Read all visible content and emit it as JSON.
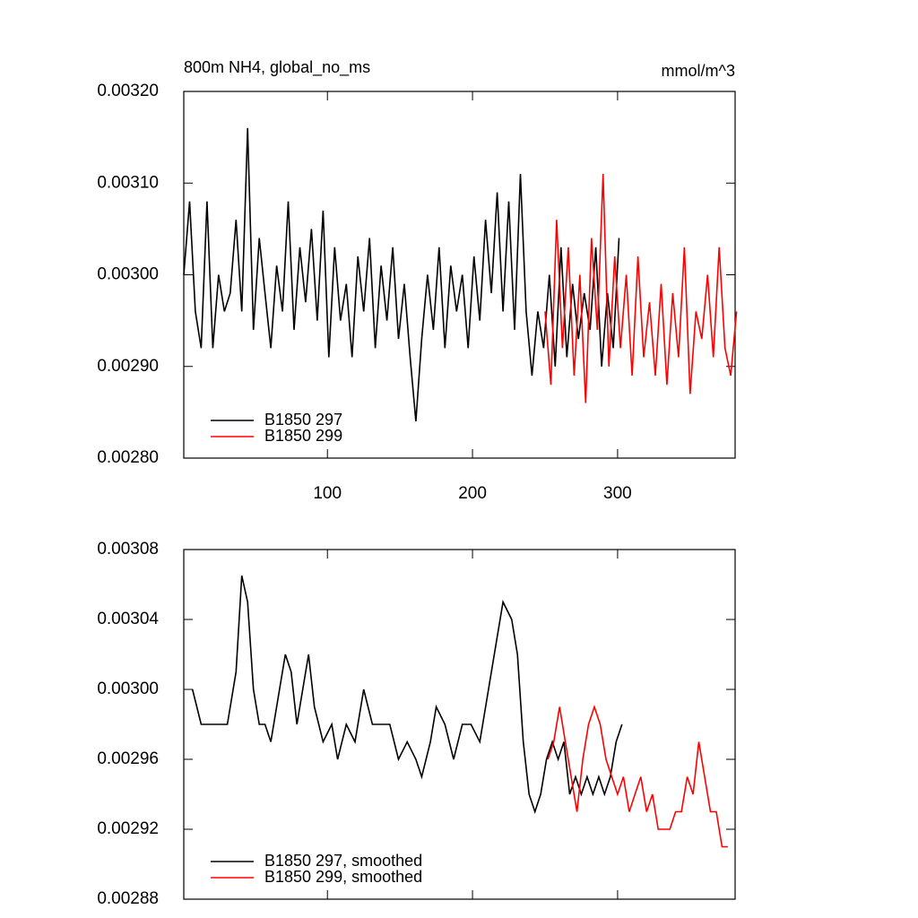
{
  "chart_data": [
    {
      "type": "line",
      "title": "800m NH4, global_no_ms",
      "units": "mmol/m^3",
      "xlim": [
        1,
        381
      ],
      "xticks": [
        100,
        200,
        300
      ],
      "xtick_labels": true,
      "ylim": [
        0.0028,
        0.0032
      ],
      "yticks": [
        {
          "value": 0.0028,
          "label": "0.00280"
        },
        {
          "value": 0.0029,
          "label": "0.00290"
        },
        {
          "value": 0.003,
          "label": "0.00300"
        },
        {
          "value": 0.0031,
          "label": "0.00310"
        },
        {
          "value": 0.0032,
          "label": "0.00320"
        }
      ],
      "legend": "lower left",
      "series": [
        {
          "name": "B1850 297",
          "color": "#000000",
          "x": [
            1,
            5,
            9,
            13,
            17,
            21,
            25,
            29,
            33,
            37,
            41,
            45,
            49,
            53,
            57,
            61,
            65,
            69,
            73,
            77,
            81,
            85,
            89,
            93,
            97,
            101,
            105,
            109,
            113,
            117,
            121,
            125,
            129,
            133,
            137,
            141,
            145,
            149,
            153,
            157,
            161,
            165,
            169,
            173,
            177,
            181,
            185,
            189,
            193,
            197,
            201,
            205,
            209,
            213,
            217,
            221,
            225,
            229,
            233,
            237,
            241,
            245,
            249,
            253,
            257,
            261,
            265,
            269,
            273,
            277,
            281,
            285,
            289,
            293,
            297,
            301
          ],
          "values": [
            0.003,
            0.00308,
            0.00296,
            0.00292,
            0.00308,
            0.00292,
            0.003,
            0.00296,
            0.00298,
            0.00306,
            0.00296,
            0.00316,
            0.00294,
            0.00304,
            0.00298,
            0.00292,
            0.00301,
            0.00296,
            0.00308,
            0.00294,
            0.00303,
            0.00297,
            0.00305,
            0.00295,
            0.00307,
            0.00291,
            0.00303,
            0.00295,
            0.00299,
            0.00291,
            0.00302,
            0.00296,
            0.00304,
            0.00292,
            0.00301,
            0.00295,
            0.00303,
            0.00293,
            0.00299,
            0.00291,
            0.00284,
            0.00293,
            0.003,
            0.00294,
            0.00303,
            0.00292,
            0.00301,
            0.00296,
            0.003,
            0.00292,
            0.00302,
            0.00295,
            0.00306,
            0.00298,
            0.00309,
            0.00296,
            0.00308,
            0.00294,
            0.00311,
            0.00296,
            0.00289,
            0.00296,
            0.00292,
            0.003,
            0.0029,
            0.00303,
            0.00291,
            0.00299,
            0.00293,
            0.00298,
            0.00294,
            0.00303,
            0.0029,
            0.00298,
            0.00292,
            0.00304
          ]
        },
        {
          "name": "B1850 299",
          "color": "#ff0000",
          "x": [
            250,
            254,
            258,
            262,
            266,
            270,
            274,
            278,
            282,
            286,
            290,
            294,
            298,
            302,
            306,
            310,
            314,
            318,
            322,
            326,
            330,
            334,
            338,
            342,
            346,
            350,
            354,
            358,
            362,
            366,
            370,
            374,
            378,
            382
          ],
          "values": [
            0.00296,
            0.00288,
            0.00306,
            0.00292,
            0.00303,
            0.00289,
            0.003,
            0.00286,
            0.00304,
            0.00294,
            0.00311,
            0.0029,
            0.00302,
            0.00292,
            0.003,
            0.00289,
            0.00302,
            0.00291,
            0.00297,
            0.00289,
            0.00299,
            0.00288,
            0.00298,
            0.00291,
            0.00303,
            0.00287,
            0.00296,
            0.00293,
            0.003,
            0.00291,
            0.00303,
            0.00292,
            0.00289,
            0.00296
          ]
        }
      ]
    },
    {
      "type": "line",
      "xlim": [
        1,
        381
      ],
      "xticks": [
        100,
        200,
        300
      ],
      "xtick_labels": false,
      "ylim": [
        0.00288,
        0.00308
      ],
      "yticks": [
        {
          "value": 0.00288,
          "label": "0.00288"
        },
        {
          "value": 0.00292,
          "label": "0.00292"
        },
        {
          "value": 0.00296,
          "label": "0.00296"
        },
        {
          "value": 0.003,
          "label": "0.00300"
        },
        {
          "value": 0.00304,
          "label": "0.00304"
        },
        {
          "value": 0.00308,
          "label": "0.00308"
        }
      ],
      "legend": "lower left",
      "series": [
        {
          "name": "B1850 297, smoothed",
          "color": "#000000",
          "x": [
            7,
            13,
            19,
            25,
            31,
            37,
            41,
            45,
            49,
            53,
            57,
            61,
            67,
            71,
            75,
            79,
            83,
            87,
            91,
            97,
            103,
            107,
            113,
            119,
            125,
            131,
            137,
            143,
            149,
            155,
            161,
            165,
            171,
            175,
            181,
            187,
            193,
            199,
            205,
            211,
            217,
            221,
            227,
            231,
            235,
            239,
            243,
            247,
            251,
            255,
            259,
            263,
            267,
            271,
            275,
            279,
            283,
            287,
            291,
            295,
            299,
            303
          ],
          "values": [
            0.003,
            0.00298,
            0.00298,
            0.00298,
            0.00298,
            0.00301,
            0.003065,
            0.00305,
            0.003,
            0.00298,
            0.00298,
            0.00297,
            0.003,
            0.00302,
            0.00301,
            0.00298,
            0.003,
            0.00302,
            0.00299,
            0.00297,
            0.00298,
            0.00296,
            0.00298,
            0.00297,
            0.003,
            0.00298,
            0.00298,
            0.00298,
            0.00296,
            0.00297,
            0.00296,
            0.00295,
            0.00297,
            0.00299,
            0.00298,
            0.00296,
            0.00298,
            0.00298,
            0.00297,
            0.003,
            0.00303,
            0.00305,
            0.00304,
            0.00302,
            0.00297,
            0.00294,
            0.00293,
            0.00294,
            0.00296,
            0.00297,
            0.00296,
            0.00297,
            0.00294,
            0.00295,
            0.00294,
            0.00295,
            0.00294,
            0.00295,
            0.00294,
            0.00295,
            0.00297,
            0.00298
          ]
        },
        {
          "name": "B1850 299, smoothed",
          "color": "#ff0000",
          "x": [
            252,
            256,
            260,
            264,
            268,
            272,
            276,
            280,
            284,
            288,
            292,
            296,
            300,
            304,
            308,
            312,
            316,
            320,
            324,
            328,
            332,
            336,
            340,
            344,
            348,
            352,
            356,
            360,
            364,
            368,
            372,
            376
          ],
          "values": [
            0.00296,
            0.00297,
            0.00299,
            0.00297,
            0.00295,
            0.00293,
            0.00296,
            0.00298,
            0.00299,
            0.00298,
            0.00296,
            0.00295,
            0.00294,
            0.00295,
            0.00293,
            0.00294,
            0.00295,
            0.00293,
            0.00294,
            0.00292,
            0.00292,
            0.00292,
            0.00293,
            0.00293,
            0.00295,
            0.00294,
            0.00297,
            0.00295,
            0.00293,
            0.00293,
            0.00291,
            0.00291
          ]
        }
      ]
    }
  ]
}
